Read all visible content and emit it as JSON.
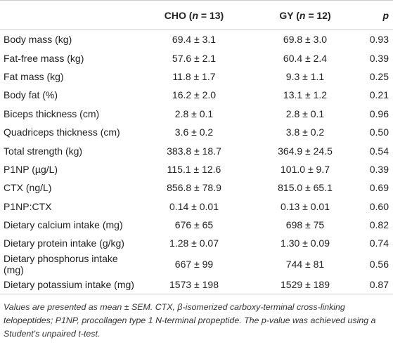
{
  "table": {
    "header": [
      {
        "pre": "CHO (",
        "n": "n",
        "post": " = 13)"
      },
      {
        "pre": "GY (",
        "n": "n",
        "post": " = 12)"
      },
      {
        "pre": "",
        "n": "p",
        "post": ""
      }
    ],
    "rows": [
      [
        "Body mass (kg)",
        "69.4 ± 3.1",
        "69.8 ± 3.0",
        "0.93"
      ],
      [
        "Fat-free mass (kg)",
        "57.6 ± 2.1",
        "60.4 ± 2.4",
        "0.39"
      ],
      [
        "Fat mass (kg)",
        "11.8 ± 1.7",
        "9.3 ± 1.1",
        "0.25"
      ],
      [
        "Body fat (%)",
        "16.2 ± 2.0",
        "13.1 ± 1.2",
        "0.21"
      ],
      [
        "Biceps thickness (cm)",
        "2.8 ± 0.1",
        "2.8 ± 0.1",
        "0.96"
      ],
      [
        "Quadriceps thickness (cm)",
        "3.6 ± 0.2",
        "3.8 ± 0.2",
        "0.50"
      ],
      [
        "Total strength (kg)",
        "383.8 ± 18.7",
        "364.9 ± 24.5",
        "0.54"
      ],
      [
        "P1NP (µg/L)",
        "115.1 ± 12.6",
        "101.0 ± 9.7",
        "0.39"
      ],
      [
        "CTX (ng/L)",
        "856.8 ± 78.9",
        "815.0 ± 65.1",
        "0.69"
      ],
      [
        "P1NP:CTX",
        "0.14 ± 0.01",
        "0.13 ± 0.01",
        "0.60"
      ],
      [
        "Dietary calcium intake (mg)",
        "676 ± 65",
        "698 ± 75",
        "0.82"
      ],
      [
        "Dietary protein intake (g/kg)",
        "1.28 ± 0.07",
        "1.30 ± 0.09",
        "0.74"
      ],
      [
        "Dietary phosphorus intake (mg)",
        "667 ± 99",
        "744 ± 81",
        "0.56"
      ],
      [
        "Dietary potassium intake (mg)",
        "1573 ± 198",
        "1529 ± 189",
        "0.87"
      ]
    ],
    "footnote": "Values are presented as mean ± SEM. CTX, β-isomerized carboxy-terminal cross-linking telopeptides; P1NP, procollagen type 1 N-terminal propeptide. The p-value was achieved using a Student's unpaired t-test."
  }
}
